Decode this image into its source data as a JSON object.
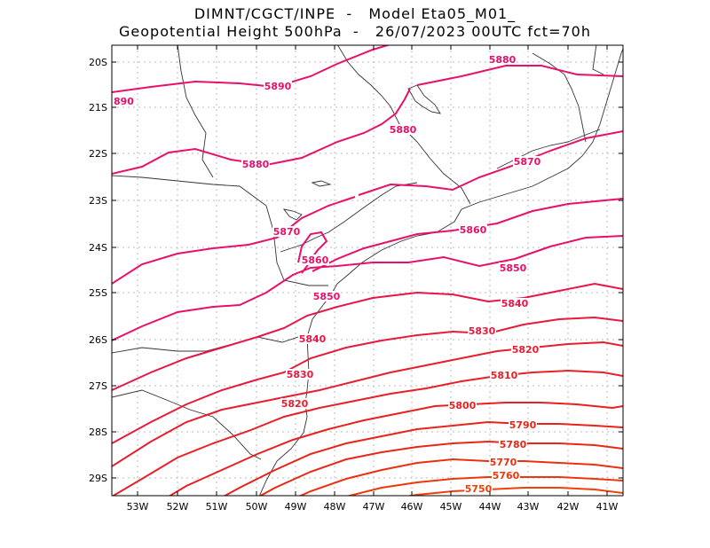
{
  "title": {
    "line1": "DIMNT/CGCT/INPE  -   Model Eta05_M01_",
    "line2": "Geopotential Height 500hPa  -   26/07/2023 00UTC fct=70h"
  },
  "axes": {
    "lat_labels": [
      "20S",
      "21S",
      "22S",
      "23S",
      "24S",
      "25S",
      "26S",
      "27S",
      "28S",
      "29S"
    ],
    "lon_labels": [
      "53W",
      "52W",
      "51W",
      "50W",
      "49W",
      "48W",
      "47W",
      "46W",
      "45W",
      "44W",
      "43W",
      "42W",
      "41W"
    ]
  },
  "contours": [
    {
      "label": "5890",
      "color": "#e8106a"
    },
    {
      "label": "5880",
      "color": "#e8106a"
    },
    {
      "label": "5870",
      "color": "#e8106a"
    },
    {
      "label": "5860",
      "color": "#e8106a"
    },
    {
      "label": "5850",
      "color": "#e8106a"
    },
    {
      "label": "5840",
      "color": "#e81548"
    },
    {
      "label": "5830",
      "color": "#e81a3c"
    },
    {
      "label": "5820",
      "color": "#e81e30"
    },
    {
      "label": "5810",
      "color": "#e82028"
    },
    {
      "label": "5800",
      "color": "#e82020"
    },
    {
      "label": "5790",
      "color": "#e82418"
    },
    {
      "label": "5780",
      "color": "#e82814"
    },
    {
      "label": "5770",
      "color": "#ea3010"
    },
    {
      "label": "5760",
      "color": "#ec380c"
    },
    {
      "label": "5750",
      "color": "#ee4008"
    }
  ],
  "edge_label": "890"
}
